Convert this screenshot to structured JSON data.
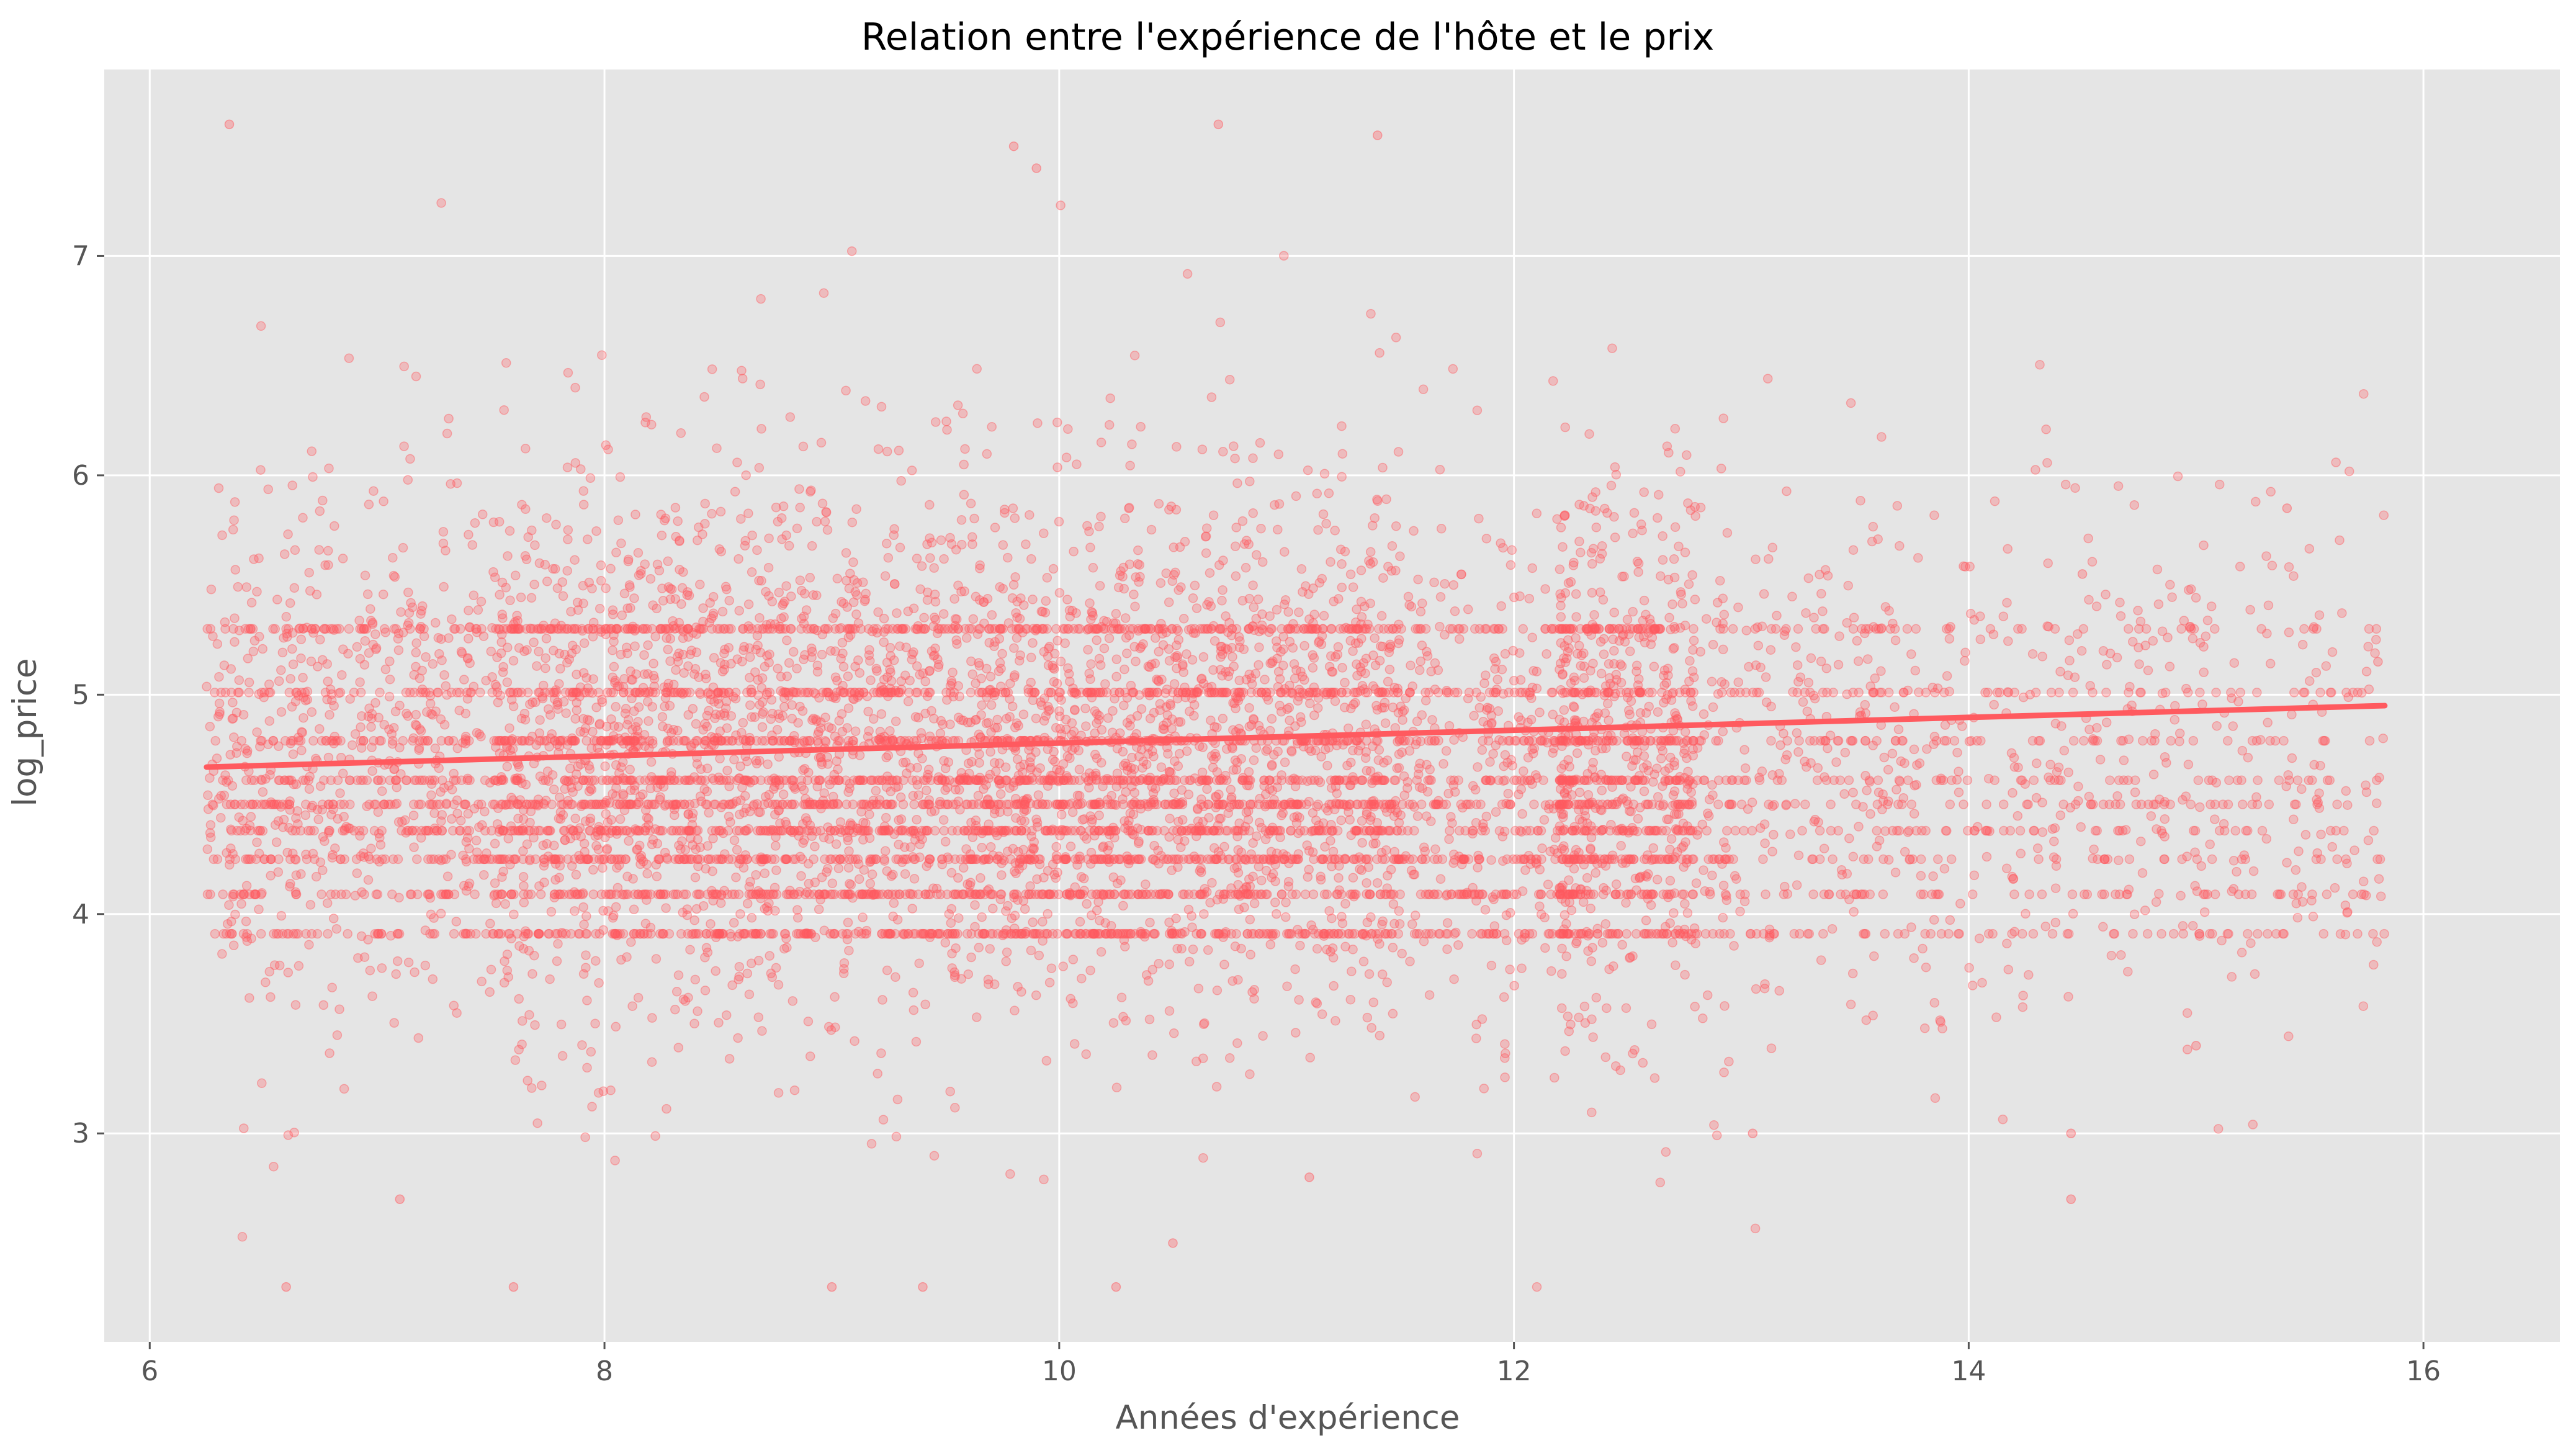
{
  "chart_data": {
    "type": "scatter",
    "title": "Relation entre l'expérience de l'hôte et le prix",
    "xlabel": "Années d'expérience",
    "ylabel": "log_price",
    "xlim": [
      5.8,
      16.6
    ],
    "ylim": [
      2.05,
      7.85
    ],
    "xticks": [
      6,
      8,
      10,
      12,
      14,
      16
    ],
    "yticks": [
      3,
      4,
      5,
      6,
      7
    ],
    "grid": true,
    "style": "ggplot",
    "point_color": "#ff5a5f",
    "line_color": "#ff5a5f",
    "background_color": "#e5e5e5",
    "point_count_estimate": 9000,
    "x_distribution": {
      "min": 6.25,
      "max": 15.83,
      "peak_region": [
        7.5,
        11.5
      ]
    },
    "y_distribution": {
      "center": 4.75,
      "spread": 0.6,
      "min": 2.3,
      "max": 7.6,
      "banded_levels": [
        3.91,
        4.09,
        4.25,
        4.38,
        4.5,
        4.61,
        4.79,
        5.01,
        5.3
      ]
    },
    "sample_points": [
      [
        6.35,
        7.6
      ],
      [
        10.7,
        7.6
      ],
      [
        11.4,
        7.55
      ],
      [
        9.8,
        7.5
      ],
      [
        9.9,
        7.4
      ],
      [
        6.6,
        2.3
      ],
      [
        7.6,
        2.3
      ],
      [
        9.0,
        2.3
      ],
      [
        9.4,
        2.3
      ],
      [
        10.25,
        2.3
      ],
      [
        10.5,
        2.5
      ],
      [
        14.45,
        2.7
      ],
      [
        7.1,
        2.7
      ],
      [
        11.1,
        2.8
      ],
      [
        15.4,
        5.85
      ],
      [
        15.8,
        5.15
      ],
      [
        14.5,
        5.55
      ],
      [
        15.0,
        3.4
      ],
      [
        14.45,
        3.0
      ],
      [
        13.05,
        3.0
      ]
    ],
    "regression_line": {
      "x": [
        6.25,
        15.83
      ],
      "y": [
        4.67,
        4.95
      ]
    }
  }
}
